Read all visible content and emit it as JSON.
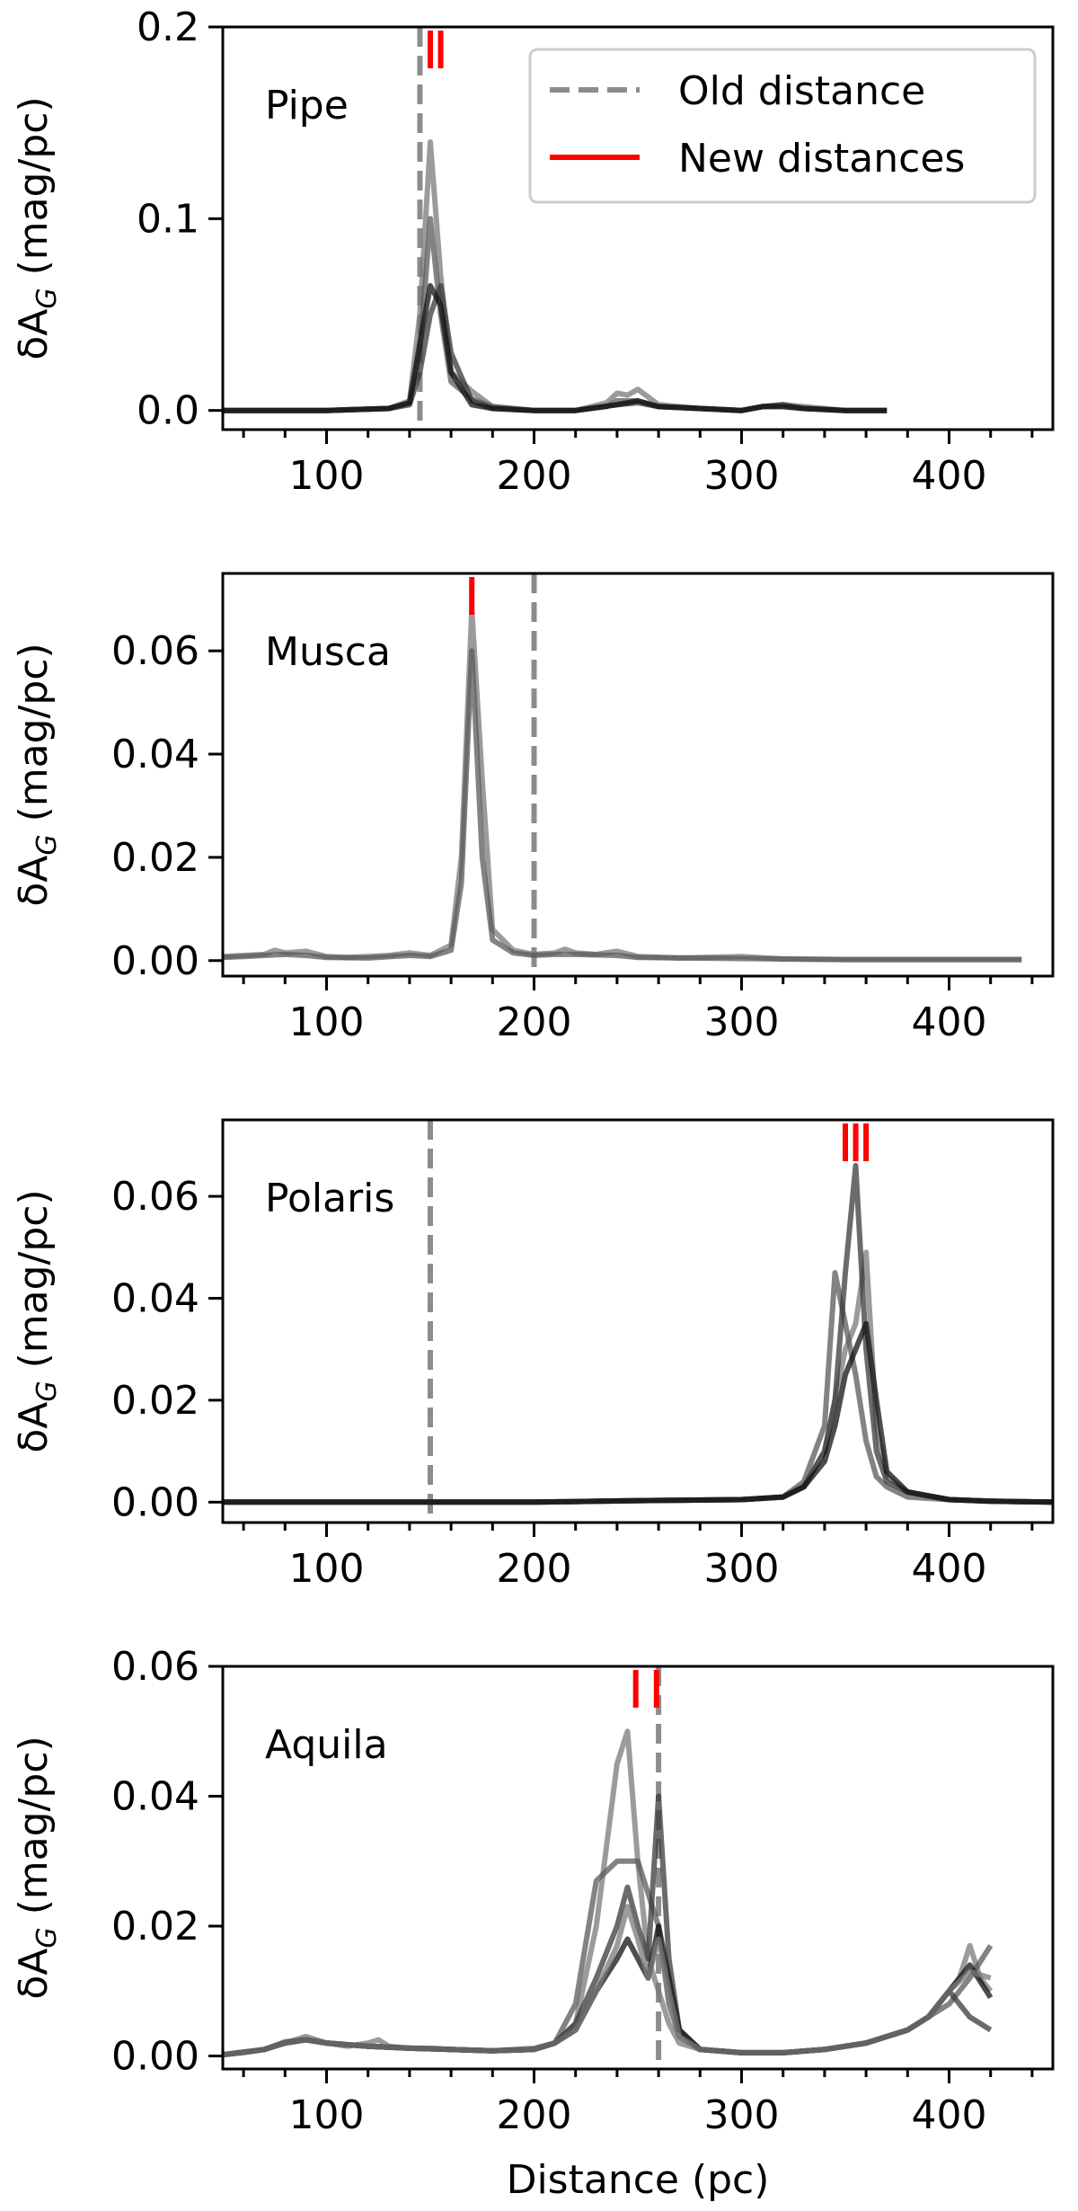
{
  "figure": {
    "xlabel": "Distance (pc)",
    "ylabel": "δA_G (mag/pc)",
    "legend": {
      "old_label": "Old distance",
      "new_label": "New distances",
      "location": "upper right of first panel"
    }
  },
  "colors": {
    "old_distance": "#8c8c8c",
    "new_distance": "#ff0000",
    "profiles": [
      "#7a7a7a",
      "#5a5a5a",
      "#3a3a3a",
      "#111111"
    ]
  },
  "chart_data": [
    {
      "type": "line",
      "title": "",
      "label": "Pipe",
      "xlabel": "",
      "ylabel": "δA_G (mag/pc)",
      "xlim": [
        50,
        450
      ],
      "ylim": [
        -0.01,
        0.2
      ],
      "xticks": [
        100,
        200,
        300,
        400
      ],
      "yticks": [
        0.0,
        0.1,
        0.2
      ],
      "ytick_labels": [
        "0.0",
        "0.1",
        "0.2"
      ],
      "old_distance": 145,
      "new_distances": [
        150,
        155
      ],
      "series": [
        {
          "x": [
            50,
            100,
            130,
            140,
            145,
            150,
            155,
            160,
            170,
            180,
            200,
            220,
            235,
            240,
            245,
            250,
            260,
            280,
            300,
            310,
            320,
            330,
            350,
            370
          ],
          "y": [
            0,
            0,
            0.001,
            0.005,
            0.05,
            0.14,
            0.07,
            0.02,
            0.01,
            0.002,
            0,
            0,
            0.004,
            0.009,
            0.008,
            0.011,
            0.003,
            0.001,
            0,
            0.002,
            0.003,
            0.002,
            0,
            0
          ]
        },
        {
          "x": [
            50,
            100,
            130,
            140,
            145,
            150,
            155,
            160,
            170,
            180,
            200,
            220,
            235,
            240,
            250,
            260,
            280,
            300,
            310,
            320,
            330,
            350,
            370
          ],
          "y": [
            0,
            0,
            0.001,
            0.004,
            0.03,
            0.1,
            0.05,
            0.015,
            0.006,
            0.002,
            0,
            0,
            0.002,
            0.005,
            0.005,
            0.002,
            0.001,
            0,
            0.002,
            0.002,
            0.001,
            0,
            0
          ]
        },
        {
          "x": [
            50,
            100,
            130,
            140,
            145,
            150,
            155,
            160,
            170,
            180,
            200,
            220,
            240,
            250,
            260,
            280,
            300,
            310,
            320,
            330,
            350,
            370
          ],
          "y": [
            0,
            0,
            0.001,
            0.003,
            0.02,
            0.05,
            0.065,
            0.03,
            0.005,
            0.001,
            0,
            0,
            0.003,
            0.004,
            0.002,
            0.001,
            0,
            0.002,
            0.003,
            0.001,
            0,
            0
          ]
        },
        {
          "x": [
            50,
            100,
            130,
            140,
            145,
            150,
            155,
            160,
            170,
            180,
            200,
            220,
            240,
            250,
            260,
            280,
            300,
            310,
            320,
            330,
            350,
            370
          ],
          "y": [
            0,
            0,
            0.001,
            0.004,
            0.035,
            0.065,
            0.055,
            0.02,
            0.003,
            0.001,
            0,
            0,
            0.003,
            0.005,
            0.002,
            0.001,
            0,
            0.002,
            0.002,
            0.001,
            0,
            0
          ]
        }
      ]
    },
    {
      "type": "line",
      "title": "",
      "label": "Musca",
      "xlabel": "",
      "ylabel": "δA_G (mag/pc)",
      "xlim": [
        50,
        450
      ],
      "ylim": [
        -0.003,
        0.075
      ],
      "xticks": [
        100,
        200,
        300,
        400
      ],
      "yticks": [
        0.0,
        0.02,
        0.04,
        0.06
      ],
      "ytick_labels": [
        "0.00",
        "0.02",
        "0.04",
        "0.06"
      ],
      "old_distance": 200,
      "new_distances": [
        170
      ],
      "series": [
        {
          "x": [
            50,
            60,
            70,
            75,
            80,
            90,
            100,
            110,
            120,
            130,
            140,
            150,
            160,
            165,
            170,
            175,
            180,
            190,
            200,
            210,
            215,
            220,
            230,
            240,
            250,
            270,
            300,
            320,
            350,
            400,
            435
          ],
          "y": [
            0.0008,
            0.001,
            0.0012,
            0.002,
            0.0015,
            0.0018,
            0.0008,
            0.0006,
            0.0008,
            0.001,
            0.0015,
            0.001,
            0.003,
            0.02,
            0.068,
            0.035,
            0.006,
            0.002,
            0.0012,
            0.0015,
            0.0022,
            0.0015,
            0.0012,
            0.0018,
            0.0008,
            0.0005,
            0.0008,
            0.0003,
            0.0002,
            0.0002,
            0.0002
          ]
        },
        {
          "x": [
            50,
            60,
            70,
            80,
            90,
            100,
            120,
            140,
            150,
            160,
            165,
            170,
            175,
            180,
            190,
            200,
            210,
            220,
            240,
            250,
            300,
            350,
            400,
            435
          ],
          "y": [
            0.0006,
            0.0008,
            0.001,
            0.0012,
            0.001,
            0.0006,
            0.0005,
            0.001,
            0.0008,
            0.002,
            0.015,
            0.06,
            0.02,
            0.004,
            0.0015,
            0.001,
            0.0012,
            0.0012,
            0.001,
            0.0006,
            0.0004,
            0.0002,
            0.0002,
            0.0002
          ]
        }
      ]
    },
    {
      "type": "line",
      "title": "",
      "label": "Polaris",
      "xlabel": "",
      "ylabel": "δA_G (mag/pc)",
      "xlim": [
        50,
        450
      ],
      "ylim": [
        -0.004,
        0.075
      ],
      "xticks": [
        100,
        200,
        300,
        400
      ],
      "yticks": [
        0.0,
        0.02,
        0.04,
        0.06
      ],
      "ytick_labels": [
        "0.00",
        "0.02",
        "0.04",
        "0.06"
      ],
      "old_distance": 150,
      "new_distances": [
        350,
        355,
        360
      ],
      "series": [
        {
          "x": [
            50,
            100,
            150,
            200,
            250,
            300,
            320,
            330,
            340,
            345,
            350,
            355,
            360,
            365,
            370,
            380,
            400,
            420,
            450
          ],
          "y": [
            0,
            0,
            0,
            0,
            0.0003,
            0.0005,
            0.001,
            0.003,
            0.01,
            0.02,
            0.03,
            0.035,
            0.049,
            0.015,
            0.005,
            0.002,
            0.0005,
            0.0002,
            0
          ]
        },
        {
          "x": [
            50,
            100,
            150,
            200,
            250,
            300,
            320,
            330,
            340,
            345,
            350,
            355,
            360,
            365,
            370,
            380,
            400,
            420,
            450
          ],
          "y": [
            0,
            0,
            0,
            0,
            0.0003,
            0.0005,
            0.001,
            0.004,
            0.015,
            0.045,
            0.035,
            0.025,
            0.012,
            0.005,
            0.003,
            0.001,
            0.0005,
            0.0002,
            0
          ]
        },
        {
          "x": [
            50,
            100,
            150,
            200,
            250,
            300,
            320,
            330,
            340,
            345,
            350,
            355,
            360,
            365,
            370,
            380,
            400,
            420,
            450
          ],
          "y": [
            0,
            0,
            0,
            0,
            0.0003,
            0.0005,
            0.001,
            0.003,
            0.01,
            0.02,
            0.045,
            0.066,
            0.03,
            0.01,
            0.004,
            0.002,
            0.0005,
            0.0002,
            0
          ]
        },
        {
          "x": [
            50,
            100,
            150,
            200,
            250,
            300,
            320,
            330,
            340,
            345,
            350,
            355,
            360,
            365,
            370,
            380,
            400,
            420,
            450
          ],
          "y": [
            0,
            0,
            0,
            0,
            0.0003,
            0.0005,
            0.001,
            0.003,
            0.008,
            0.015,
            0.025,
            0.03,
            0.035,
            0.02,
            0.006,
            0.002,
            0.0005,
            0.0002,
            0
          ]
        }
      ]
    },
    {
      "type": "line",
      "title": "",
      "label": "Aquila",
      "xlabel": "Distance (pc)",
      "ylabel": "δA_G (mag/pc)",
      "xlim": [
        50,
        450
      ],
      "ylim": [
        -0.002,
        0.06
      ],
      "xticks": [
        100,
        200,
        300,
        400
      ],
      "yticks": [
        0.0,
        0.02,
        0.04,
        0.06
      ],
      "ytick_labels": [
        "0.00",
        "0.02",
        "0.04",
        "0.06"
      ],
      "old_distance": 260,
      "new_distances": [
        249,
        259
      ],
      "series": [
        {
          "x": [
            50,
            60,
            70,
            80,
            90,
            100,
            110,
            120,
            125,
            130,
            140,
            150,
            160,
            180,
            200,
            210,
            220,
            230,
            240,
            245,
            250,
            255,
            260,
            265,
            270,
            280,
            300,
            320,
            340,
            360,
            380,
            390,
            400,
            405,
            410,
            415,
            420
          ],
          "y": [
            0.0002,
            0.0005,
            0.001,
            0.002,
            0.003,
            0.002,
            0.0015,
            0.002,
            0.0025,
            0.0015,
            0.0012,
            0.0012,
            0.001,
            0.0008,
            0.0012,
            0.002,
            0.005,
            0.02,
            0.045,
            0.05,
            0.03,
            0.015,
            0.01,
            0.005,
            0.002,
            0.001,
            0.0005,
            0.0005,
            0.001,
            0.002,
            0.004,
            0.006,
            0.01,
            0.012,
            0.017,
            0.012,
            0.01
          ]
        },
        {
          "x": [
            50,
            70,
            80,
            90,
            100,
            120,
            140,
            160,
            180,
            200,
            210,
            220,
            230,
            240,
            245,
            250,
            255,
            260,
            265,
            270,
            280,
            300,
            320,
            340,
            360,
            380,
            390,
            400,
            410,
            420
          ],
          "y": [
            0.0002,
            0.001,
            0.0022,
            0.0025,
            0.002,
            0.0015,
            0.0012,
            0.001,
            0.0008,
            0.001,
            0.002,
            0.008,
            0.027,
            0.03,
            0.03,
            0.03,
            0.025,
            0.02,
            0.008,
            0.003,
            0.001,
            0.0005,
            0.0005,
            0.001,
            0.002,
            0.004,
            0.006,
            0.008,
            0.012,
            0.017
          ]
        },
        {
          "x": [
            50,
            70,
            80,
            90,
            100,
            120,
            140,
            160,
            180,
            200,
            210,
            220,
            230,
            240,
            245,
            250,
            255,
            260,
            265,
            270,
            280,
            300,
            320,
            340,
            360,
            380,
            390,
            400,
            410,
            420
          ],
          "y": [
            0.0002,
            0.001,
            0.002,
            0.0025,
            0.002,
            0.0015,
            0.0012,
            0.001,
            0.0008,
            0.001,
            0.002,
            0.005,
            0.012,
            0.02,
            0.026,
            0.02,
            0.015,
            0.04,
            0.015,
            0.004,
            0.001,
            0.0005,
            0.0005,
            0.001,
            0.002,
            0.004,
            0.006,
            0.01,
            0.006,
            0.004
          ]
        },
        {
          "x": [
            50,
            70,
            80,
            90,
            100,
            120,
            140,
            160,
            180,
            200,
            210,
            220,
            230,
            240,
            245,
            250,
            255,
            260,
            265,
            270,
            280,
            300,
            320,
            340,
            360,
            380,
            390,
            400,
            410,
            420
          ],
          "y": [
            0.0002,
            0.001,
            0.002,
            0.0025,
            0.002,
            0.0015,
            0.0012,
            0.001,
            0.0008,
            0.001,
            0.002,
            0.004,
            0.01,
            0.015,
            0.018,
            0.015,
            0.012,
            0.02,
            0.012,
            0.004,
            0.001,
            0.0005,
            0.0005,
            0.001,
            0.002,
            0.004,
            0.006,
            0.01,
            0.014,
            0.009
          ]
        },
        {
          "x": [
            50,
            70,
            80,
            90,
            100,
            120,
            140,
            160,
            180,
            200,
            210,
            220,
            230,
            240,
            245,
            250,
            255,
            260,
            265,
            270,
            280,
            300,
            320,
            340,
            360,
            380,
            390,
            400,
            410,
            420
          ],
          "y": [
            0.0002,
            0.001,
            0.002,
            0.0025,
            0.002,
            0.0015,
            0.0012,
            0.001,
            0.0008,
            0.001,
            0.002,
            0.004,
            0.01,
            0.017,
            0.023,
            0.018,
            0.012,
            0.018,
            0.01,
            0.003,
            0.001,
            0.0005,
            0.0005,
            0.001,
            0.002,
            0.004,
            0.006,
            0.01,
            0.013,
            0.012
          ]
        }
      ]
    }
  ]
}
